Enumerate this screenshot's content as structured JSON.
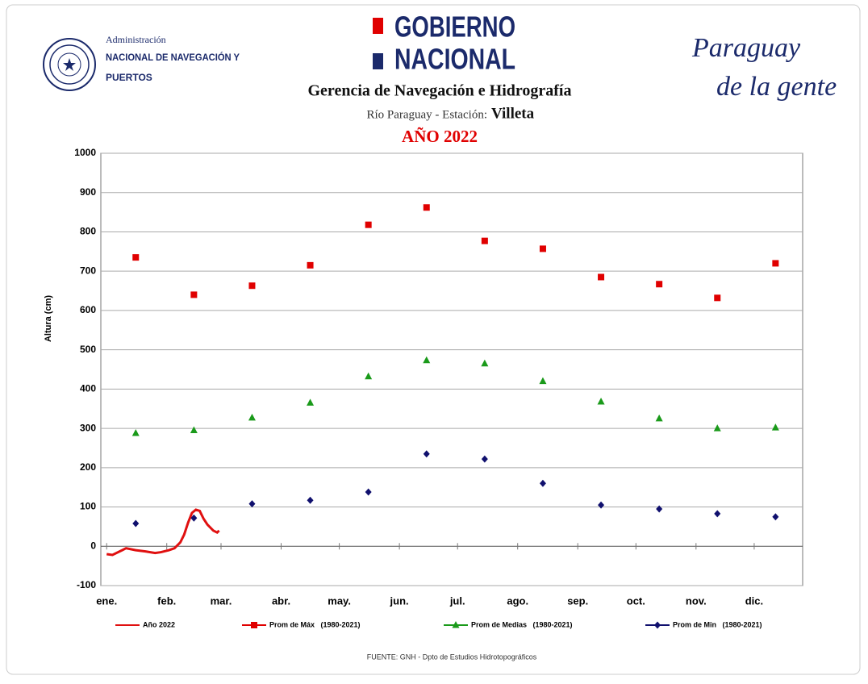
{
  "header": {
    "agency_small": "Administración",
    "agency_line1": "NACIONAL DE NAVEGACIÓN Y",
    "agency_line2": "PUERTOS",
    "gov_line1": "GOBIERNO",
    "gov_line2": "NACIONAL",
    "title": "Gerencia de Navegación e Hidrografía",
    "station_prefix": "Río Paraguay -  Estación:",
    "station": "Villeta",
    "year": "AÑO 2022",
    "slogan_line1": "Paraguay",
    "slogan_line2": "de la gente"
  },
  "chart_data": {
    "type": "line",
    "y_label": "Altura (cm)",
    "xlim": [
      -3,
      359
    ],
    "xticks": [
      {
        "value": 0,
        "label": "ene."
      },
      {
        "value": 31,
        "label": "feb."
      },
      {
        "value": 59,
        "label": "mar."
      },
      {
        "value": 90,
        "label": "abr."
      },
      {
        "value": 120,
        "label": "may."
      },
      {
        "value": 151,
        "label": "jun."
      },
      {
        "value": 181,
        "label": "jul."
      },
      {
        "value": 212,
        "label": "ago."
      },
      {
        "value": 243,
        "label": "sep."
      },
      {
        "value": 273,
        "label": "oct."
      },
      {
        "value": 304,
        "label": "nov."
      },
      {
        "value": 334,
        "label": "dic."
      }
    ],
    "ylim": [
      -100,
      1000
    ],
    "yticks": [
      -100,
      0,
      100,
      200,
      300,
      400,
      500,
      600,
      700,
      800,
      900,
      1000
    ],
    "grid": true,
    "series": [
      {
        "name": "Año 2022",
        "color": "#e01010",
        "marker": "line",
        "x": [
          0,
          3,
          8,
          10,
          15,
          20,
          25,
          28,
          32,
          35,
          38,
          40,
          42,
          44,
          46,
          48,
          50,
          52,
          55,
          57,
          58
        ],
        "values": [
          -20,
          -22,
          -10,
          -5,
          -10,
          -13,
          -17,
          -15,
          -10,
          -5,
          10,
          30,
          60,
          85,
          93,
          90,
          70,
          55,
          40,
          35,
          40
        ]
      },
      {
        "name": "Prom de Máx   (1980-2021)",
        "color": "#e00000",
        "marker": "square",
        "x": [
          15,
          45,
          75,
          105,
          135,
          165,
          195,
          225,
          255,
          285,
          315,
          345
        ],
        "values": [
          735,
          640,
          663,
          715,
          818,
          862,
          777,
          757,
          685,
          667,
          632,
          720
        ]
      },
      {
        "name": "Prom de Medias   (1980-2021)",
        "color": "#1a9a1a",
        "marker": "triangle",
        "x": [
          15,
          45,
          75,
          105,
          135,
          165,
          195,
          225,
          255,
          285,
          315,
          345
        ],
        "values": [
          288,
          295,
          327,
          365,
          432,
          473,
          465,
          420,
          368,
          325,
          300,
          302
        ]
      },
      {
        "name": "Prom de Min   (1980-2021)",
        "color": "#10106e",
        "marker": "diamond",
        "x": [
          15,
          45,
          75,
          105,
          135,
          165,
          195,
          225,
          255,
          285,
          315,
          345
        ],
        "values": [
          58,
          72,
          108,
          117,
          138,
          235,
          222,
          160,
          105,
          95,
          83,
          75
        ]
      }
    ]
  },
  "footer": "FUENTE:  GNH  - Dpto de Estudios  Hidrotopográficos"
}
